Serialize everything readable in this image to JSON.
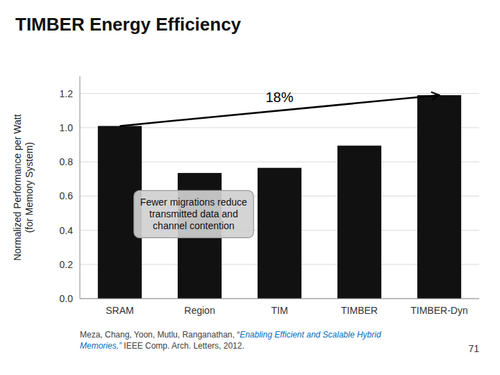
{
  "chart_data": {
    "type": "bar",
    "title": "TIMBER Energy Efficiency",
    "ylabel": "Normalized Performance per Watt\n(for Memory System)",
    "categories": [
      "SRAM",
      "Region",
      "TIM",
      "TIMBER",
      "TIMBER-Dyn"
    ],
    "values": [
      1.01,
      0.735,
      0.765,
      0.895,
      1.19
    ],
    "color": "#111111",
    "ylim": [
      0,
      1.3
    ],
    "yticks": [
      {
        "value": 0,
        "label": "0.0"
      },
      0.2,
      0.4,
      0.6,
      0.8,
      {
        "value": 1.0,
        "label": "1.0"
      },
      1.2
    ],
    "grid": true,
    "annotations": [
      "18%",
      "Fewer migrations reduce\ntransmitted data and\nchannel contention"
    ],
    "footer": [
      {
        "text": "Meza, Chang, Yoon, Mutlu, Ranganathan, “",
        "color": "#404040"
      },
      {
        "text": "Enabling Efficient and Scalable Hybrid Memories,”",
        "color": "#0070C0"
      },
      {
        "text": " IEEE Comp. Arch. Letters, 2012.",
        "color": "#404040"
      }
    ],
    "page_number": "71"
  }
}
